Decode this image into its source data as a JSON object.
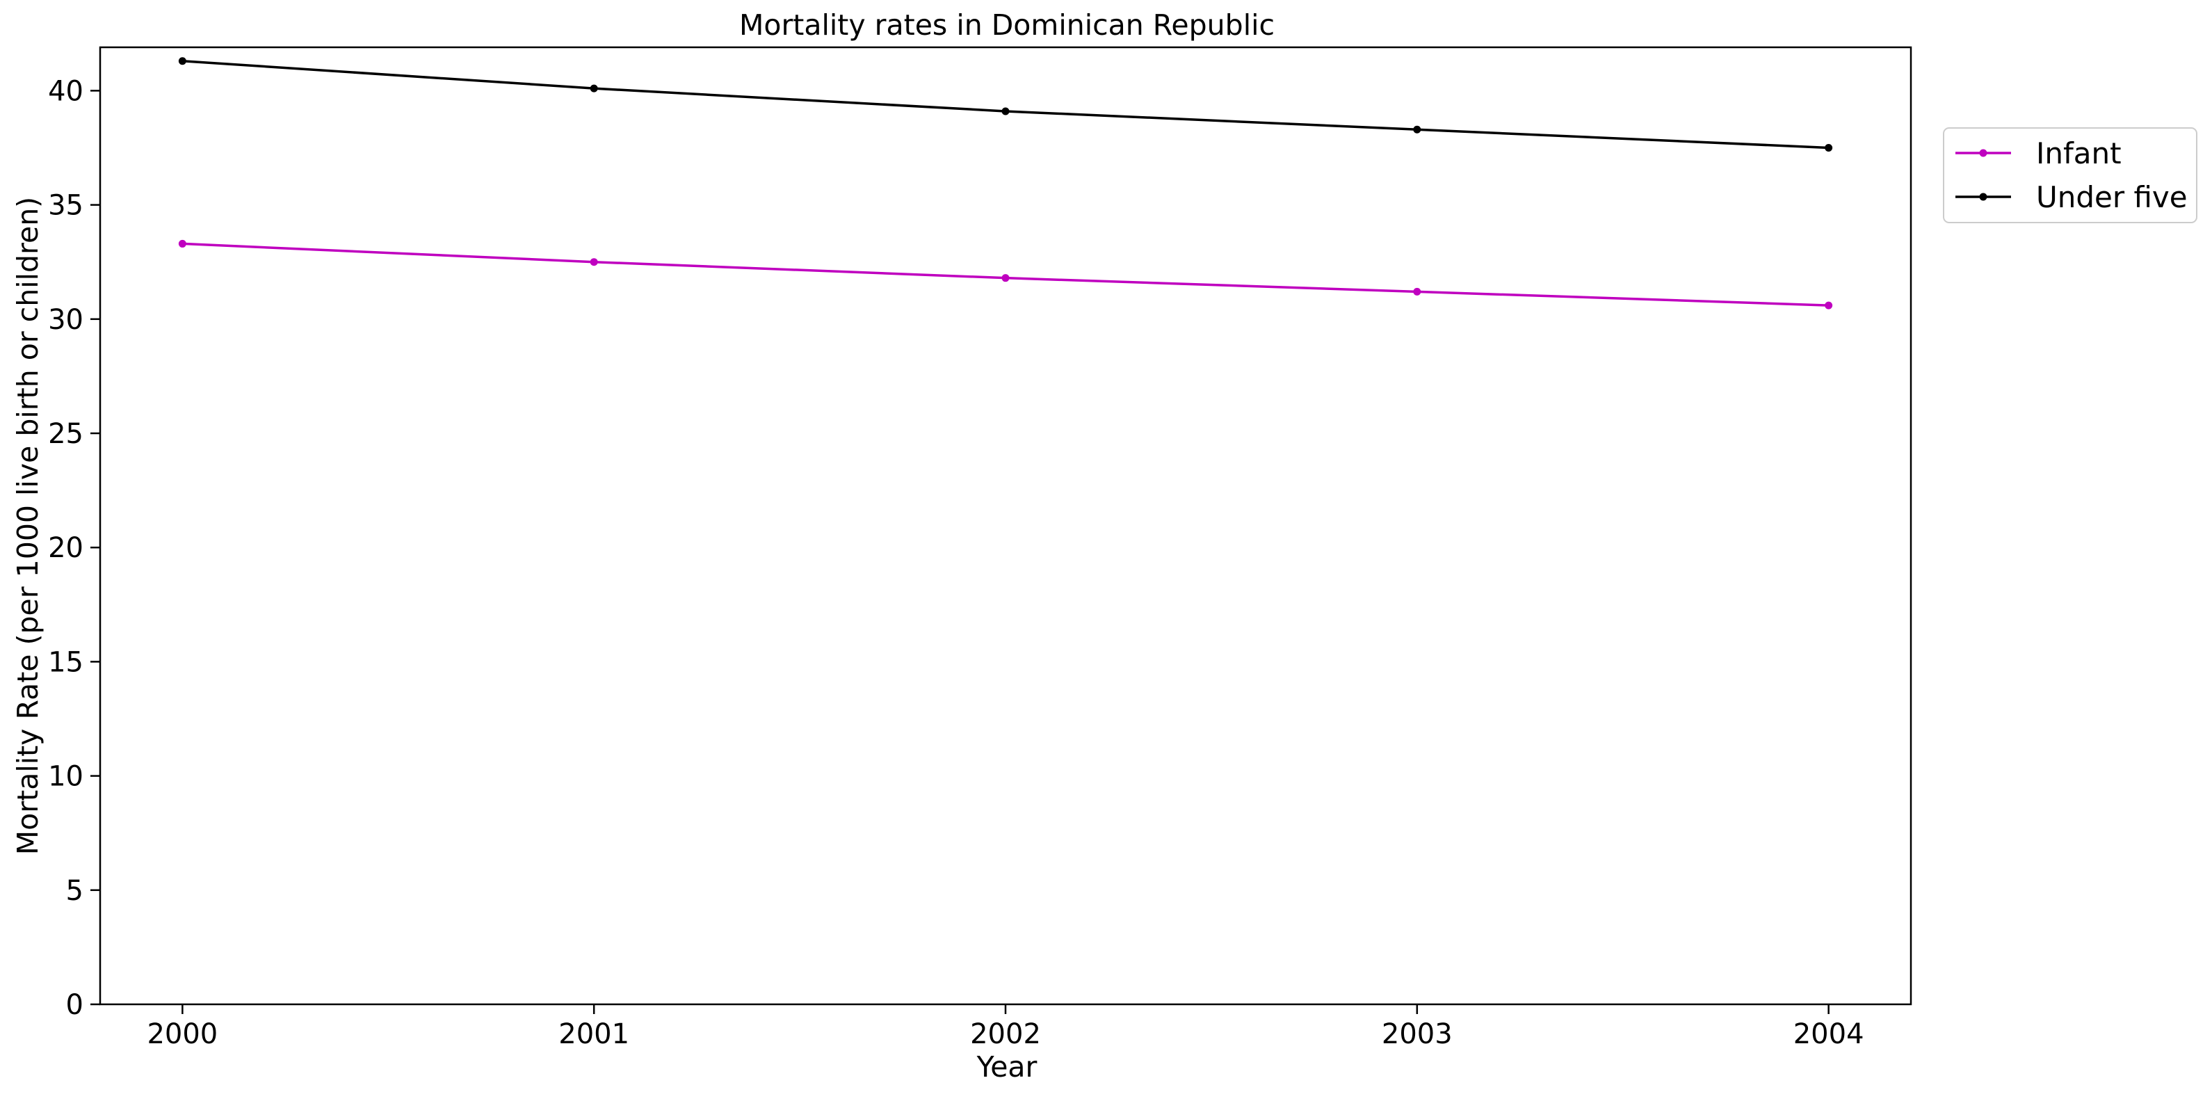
{
  "chart_data": {
    "type": "line",
    "title": "Mortality rates in Dominican Republic",
    "xlabel": "Year",
    "ylabel": "Mortality Rate (per 1000 live birth or children)",
    "x": [
      2000,
      2001,
      2002,
      2003,
      2004
    ],
    "xticks": [
      "2000",
      "2001",
      "2002",
      "2003",
      "2004"
    ],
    "yticks": [
      "0",
      "5",
      "10",
      "15",
      "20",
      "25",
      "30",
      "35",
      "40"
    ],
    "ylim": [
      0,
      41.9
    ],
    "grid": false,
    "legend_placement": "outside-top-right",
    "series": [
      {
        "name": "Infant",
        "color": "#bf00bf",
        "values": [
          33.3,
          32.5,
          31.8,
          31.2,
          30.6
        ]
      },
      {
        "name": "Under five",
        "color": "#000000",
        "values": [
          41.3,
          40.1,
          39.1,
          38.3,
          37.5
        ]
      }
    ]
  }
}
